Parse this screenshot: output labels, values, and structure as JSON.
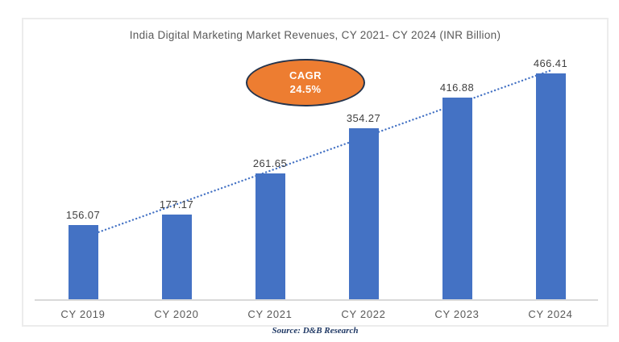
{
  "chart": {
    "title": "India Digital Marketing Market Revenues, CY 2021- CY 2024 (INR Billion)",
    "source_note": "Source: D&B Research",
    "cagr_badge": {
      "label": "CAGR",
      "value": "24.5%"
    }
  },
  "colors": {
    "bar": "#4472C4",
    "trendline": "#4472C4",
    "badge_fill": "#ED7D31",
    "badge_border": "#24344D",
    "badge_text": "#FFFFFF",
    "title_text": "#595959",
    "data_label_text": "#404040",
    "axis_label_text": "#595959",
    "axis_line": "#D9D9D9",
    "chart_border": "#ECECEC",
    "source_text": "#1F3864"
  },
  "chart_data": {
    "type": "bar",
    "title": "India Digital Marketing Market Revenues, CY 2021- CY 2024 (INR Billion)",
    "categories": [
      "CY 2019",
      "CY 2020",
      "CY 2021",
      "CY 2022",
      "CY 2023",
      "CY 2024"
    ],
    "values": [
      156.07,
      177.17,
      261.65,
      354.27,
      416.88,
      466.41
    ],
    "data_labels": [
      "156.07",
      "177.17",
      "261.65",
      "354.27",
      "416.88",
      "466.41"
    ],
    "xlabel": "",
    "ylabel": "",
    "ylim": [
      0,
      500
    ],
    "gridlines": false,
    "legend": "none",
    "trendline": {
      "style": "dotted",
      "color": "#4472C4",
      "from": "CY 2019",
      "to": "CY 2024"
    },
    "annotation": {
      "shape": "ellipse",
      "text": "CAGR 24.5%"
    }
  }
}
